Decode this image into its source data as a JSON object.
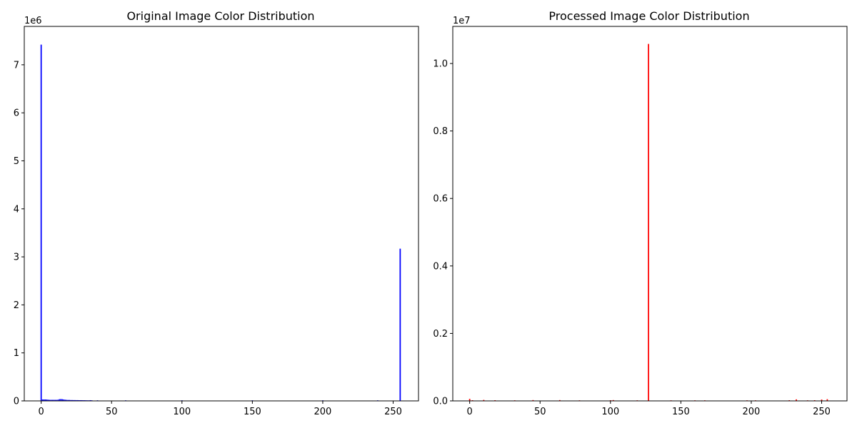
{
  "chart_data": [
    {
      "type": "bar",
      "title": "Original Image Color Distribution",
      "xlabel": "",
      "ylabel": "",
      "color": "#0000ff",
      "xlim": [
        -12,
        268
      ],
      "ylim": [
        0,
        7800000
      ],
      "xticks": [
        0,
        50,
        100,
        150,
        200,
        250
      ],
      "xtick_labels": [
        "0",
        "50",
        "100",
        "150",
        "200",
        "250"
      ],
      "yticks": [
        0,
        1000000,
        2000000,
        3000000,
        4000000,
        5000000,
        6000000,
        7000000
      ],
      "ytick_labels": [
        "0",
        "1",
        "2",
        "3",
        "4",
        "5",
        "6",
        "7"
      ],
      "offset_text": "1e6",
      "grid": false,
      "bars": [
        {
          "x": 0,
          "y": 7420000
        },
        {
          "x": 1,
          "y": 30000
        },
        {
          "x": 2,
          "y": 30000
        },
        {
          "x": 3,
          "y": 30000
        },
        {
          "x": 4,
          "y": 28000
        },
        {
          "x": 5,
          "y": 25000
        },
        {
          "x": 6,
          "y": 22000
        },
        {
          "x": 7,
          "y": 22000
        },
        {
          "x": 8,
          "y": 22000
        },
        {
          "x": 9,
          "y": 22000
        },
        {
          "x": 10,
          "y": 22000
        },
        {
          "x": 11,
          "y": 22000
        },
        {
          "x": 12,
          "y": 25000
        },
        {
          "x": 13,
          "y": 35000
        },
        {
          "x": 14,
          "y": 38000
        },
        {
          "x": 15,
          "y": 35000
        },
        {
          "x": 16,
          "y": 30000
        },
        {
          "x": 17,
          "y": 25000
        },
        {
          "x": 18,
          "y": 22000
        },
        {
          "x": 19,
          "y": 20000
        },
        {
          "x": 20,
          "y": 20000
        },
        {
          "x": 21,
          "y": 18000
        },
        {
          "x": 22,
          "y": 18000
        },
        {
          "x": 23,
          "y": 17000
        },
        {
          "x": 24,
          "y": 17000
        },
        {
          "x": 25,
          "y": 16000
        },
        {
          "x": 26,
          "y": 16000
        },
        {
          "x": 27,
          "y": 15000
        },
        {
          "x": 28,
          "y": 15000
        },
        {
          "x": 29,
          "y": 15000
        },
        {
          "x": 30,
          "y": 14000
        },
        {
          "x": 31,
          "y": 14000
        },
        {
          "x": 32,
          "y": 13000
        },
        {
          "x": 33,
          "y": 10000
        },
        {
          "x": 34,
          "y": 8000
        },
        {
          "x": 35,
          "y": 15000
        },
        {
          "x": 36,
          "y": 6000
        },
        {
          "x": 40,
          "y": 3000
        },
        {
          "x": 60,
          "y": 2000
        },
        {
          "x": 100,
          "y": 2000
        },
        {
          "x": 150,
          "y": 2000
        },
        {
          "x": 200,
          "y": 2000
        },
        {
          "x": 239,
          "y": 5000
        },
        {
          "x": 255,
          "y": 3170000
        }
      ]
    },
    {
      "type": "bar",
      "title": "Processed Image Color Distribution",
      "xlabel": "",
      "ylabel": "",
      "color": "#ff0000",
      "xlim": [
        -12,
        268
      ],
      "ylim": [
        0,
        11100000
      ],
      "xticks": [
        0,
        50,
        100,
        150,
        200,
        250
      ],
      "xtick_labels": [
        "0",
        "50",
        "100",
        "150",
        "200",
        "250"
      ],
      "yticks": [
        0,
        2000000,
        4000000,
        6000000,
        8000000,
        10000000
      ],
      "ytick_labels": [
        "0.0",
        "0.2",
        "0.4",
        "0.6",
        "0.8",
        "1.0"
      ],
      "offset_text": "1e7",
      "grid": false,
      "bars": [
        {
          "x": 0,
          "y": 60000
        },
        {
          "x": 2,
          "y": 20000
        },
        {
          "x": 10,
          "y": 30000
        },
        {
          "x": 18,
          "y": 20000
        },
        {
          "x": 32,
          "y": 15000
        },
        {
          "x": 45,
          "y": 25000
        },
        {
          "x": 64,
          "y": 25000
        },
        {
          "x": 78,
          "y": 15000
        },
        {
          "x": 100,
          "y": 20000
        },
        {
          "x": 102,
          "y": 25000
        },
        {
          "x": 119,
          "y": 15000
        },
        {
          "x": 127,
          "y": 10580000
        },
        {
          "x": 143,
          "y": 15000
        },
        {
          "x": 160,
          "y": 10000
        },
        {
          "x": 167,
          "y": 10000
        },
        {
          "x": 197,
          "y": 15000
        },
        {
          "x": 203,
          "y": 15000
        },
        {
          "x": 227,
          "y": 20000
        },
        {
          "x": 232,
          "y": 45000
        },
        {
          "x": 240,
          "y": 15000
        },
        {
          "x": 245,
          "y": 20000
        },
        {
          "x": 250,
          "y": 40000
        },
        {
          "x": 254,
          "y": 50000
        }
      ]
    }
  ]
}
